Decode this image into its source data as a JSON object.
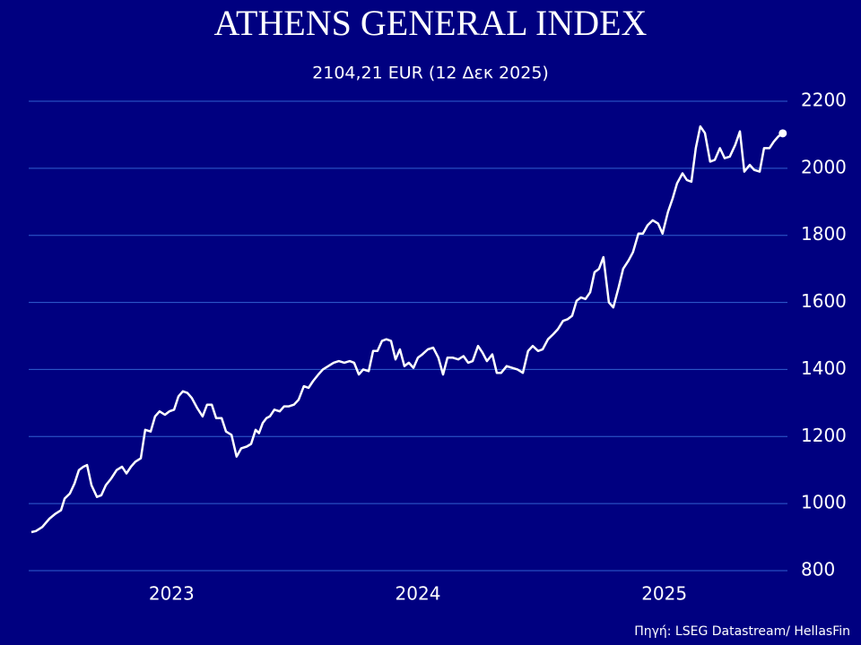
{
  "chart_data": {
    "type": "line",
    "title": "ATHENS GENERAL INDEX",
    "subtitle": "2104,21 EUR (12 Δεκ 2025)",
    "source": "Πηγή: LSEG Datastream/ HellasFin",
    "color": "#ffffff",
    "grid_color": "#3060d0",
    "grid": true,
    "xlim": [
      2022.92,
      2026.0
    ],
    "xticks": [
      {
        "value": 2023.5,
        "label": "2023"
      },
      {
        "value": 2024.5,
        "label": "2024"
      },
      {
        "value": 2025.5,
        "label": "2025"
      }
    ],
    "ylim": [
      800,
      2200
    ],
    "yticks": [
      800,
      1000,
      1200,
      1400,
      1600,
      1800,
      2000,
      2200
    ],
    "x": [
      2022.931,
      2022.949,
      2022.975,
      2023.004,
      2023.029,
      2023.051,
      2023.066,
      2023.087,
      2023.106,
      2023.124,
      2023.142,
      2023.157,
      2023.175,
      2023.197,
      2023.215,
      2023.233,
      2023.255,
      2023.277,
      2023.299,
      2023.317,
      2023.335,
      2023.353,
      2023.375,
      2023.393,
      2023.415,
      2023.433,
      2023.451,
      2023.473,
      2023.491,
      2023.51,
      2023.528,
      2023.546,
      2023.564,
      2023.582,
      2023.604,
      2023.626,
      2023.644,
      2023.663,
      2023.681,
      2023.703,
      2023.721,
      2023.743,
      2023.764,
      2023.783,
      2023.805,
      2023.823,
      2023.841,
      2023.855,
      2023.87,
      2023.885,
      2023.899,
      2023.917,
      2023.939,
      2023.957,
      2023.976,
      2023.997,
      2024.016,
      2024.037,
      2024.056,
      2024.074,
      2024.096,
      2024.114,
      2024.136,
      2024.158,
      2024.179,
      2024.201,
      2024.223,
      2024.241,
      2024.26,
      2024.278,
      2024.3,
      2024.318,
      2024.336,
      2024.354,
      2024.372,
      2024.391,
      2024.409,
      2024.427,
      2024.445,
      2024.463,
      2024.482,
      2024.5,
      2024.518,
      2024.54,
      2024.562,
      2024.583,
      2024.602,
      2024.62,
      2024.642,
      2024.664,
      2024.685,
      2024.704,
      2024.722,
      2024.744,
      2024.762,
      2024.78,
      2024.802,
      2024.82,
      2024.838,
      2024.86,
      2024.882,
      2024.904,
      2024.926,
      2024.947,
      2024.966,
      2024.988,
      2025.006,
      2025.028,
      2025.049,
      2025.068,
      2025.089,
      2025.108,
      2025.126,
      2025.144,
      2025.162,
      2025.18,
      2025.199,
      2025.217,
      2025.235,
      2025.253,
      2025.275,
      2025.293,
      2025.315,
      2025.333,
      2025.355,
      2025.373,
      2025.395,
      2025.413,
      2025.432,
      2025.453,
      2025.475,
      2025.493,
      2025.515,
      2025.534,
      2025.552,
      2025.574,
      2025.592,
      2025.61,
      2025.628,
      2025.646,
      2025.665,
      2025.686,
      2025.705,
      2025.726,
      2025.745,
      2025.766,
      2025.788,
      2025.807,
      2025.825,
      2025.847,
      2025.865,
      2025.887,
      2025.905,
      2025.927,
      2025.945,
      2025.963,
      2025.981
    ],
    "series": [
      {
        "name": "Athens General Index",
        "color": "#ffffff",
        "values": [
          915,
          918,
          930,
          955,
          970,
          980,
          1015,
          1030,
          1060,
          1100,
          1110,
          1115,
          1055,
          1020,
          1025,
          1055,
          1075,
          1100,
          1110,
          1090,
          1110,
          1125,
          1135,
          1220,
          1215,
          1260,
          1275,
          1265,
          1275,
          1280,
          1320,
          1335,
          1330,
          1315,
          1285,
          1260,
          1295,
          1295,
          1255,
          1255,
          1215,
          1205,
          1140,
          1165,
          1170,
          1178,
          1220,
          1210,
          1240,
          1255,
          1260,
          1280,
          1275,
          1290,
          1290,
          1295,
          1310,
          1350,
          1345,
          1365,
          1385,
          1400,
          1410,
          1420,
          1425,
          1420,
          1425,
          1420,
          1385,
          1400,
          1395,
          1455,
          1455,
          1485,
          1490,
          1485,
          1430,
          1460,
          1410,
          1420,
          1405,
          1435,
          1445,
          1460,
          1465,
          1435,
          1385,
          1435,
          1435,
          1430,
          1440,
          1420,
          1425,
          1470,
          1450,
          1425,
          1445,
          1390,
          1390,
          1410,
          1405,
          1400,
          1390,
          1455,
          1470,
          1455,
          1460,
          1490,
          1505,
          1520,
          1545,
          1550,
          1560,
          1605,
          1615,
          1610,
          1630,
          1690,
          1700,
          1735,
          1600,
          1585,
          1645,
          1700,
          1725,
          1750,
          1805,
          1805,
          1830,
          1845,
          1835,
          1805,
          1870,
          1910,
          1955,
          1985,
          1965,
          1960,
          2060,
          2125,
          2105,
          2020,
          2025,
          2060,
          2030,
          2035,
          2070,
          2110,
          1990,
          2010,
          1995,
          1990,
          2060,
          2060,
          2080,
          2095,
          2104.21
        ]
      }
    ]
  }
}
